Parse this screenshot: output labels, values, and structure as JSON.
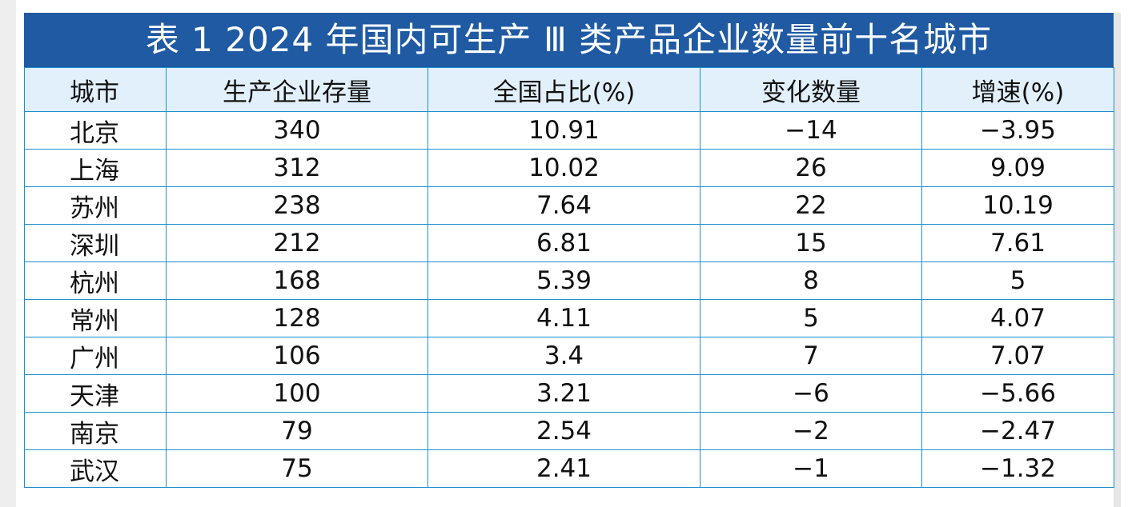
{
  "title": "表 1  2024 年国内可生产 Ⅲ 类产品企业数量前十名城市",
  "headers": {
    "city": "城市",
    "stock": "生产企业存量",
    "share": "全国占比(%)",
    "change": "变化数量",
    "growth": "增速(%)"
  },
  "rows": [
    {
      "city": "北京",
      "stock": "340",
      "share": "10.91",
      "change": "−14",
      "growth": "−3.95"
    },
    {
      "city": "上海",
      "stock": "312",
      "share": "10.02",
      "change": "26",
      "growth": "9.09"
    },
    {
      "city": "苏州",
      "stock": "238",
      "share": "7.64",
      "change": "22",
      "growth": "10.19"
    },
    {
      "city": "深圳",
      "stock": "212",
      "share": "6.81",
      "change": "15",
      "growth": "7.61"
    },
    {
      "city": "杭州",
      "stock": "168",
      "share": "5.39",
      "change": "8",
      "growth": "5"
    },
    {
      "city": "常州",
      "stock": "128",
      "share": "4.11",
      "change": "5",
      "growth": "4.07"
    },
    {
      "city": "广州",
      "stock": "106",
      "share": "3.4",
      "change": "7",
      "growth": "7.07"
    },
    {
      "city": "天津",
      "stock": "100",
      "share": "3.21",
      "change": "−6",
      "growth": "−5.66"
    },
    {
      "city": "南京",
      "stock": "79",
      "share": "2.54",
      "change": "−2",
      "growth": "−2.47"
    },
    {
      "city": "武汉",
      "stock": "75",
      "share": "2.41",
      "change": "−1",
      "growth": "−1.32"
    }
  ],
  "colors": {
    "title_bg": "#1f5aa3",
    "header_bg": "#e2f0fb",
    "grid_line": "#1c8fcd"
  }
}
